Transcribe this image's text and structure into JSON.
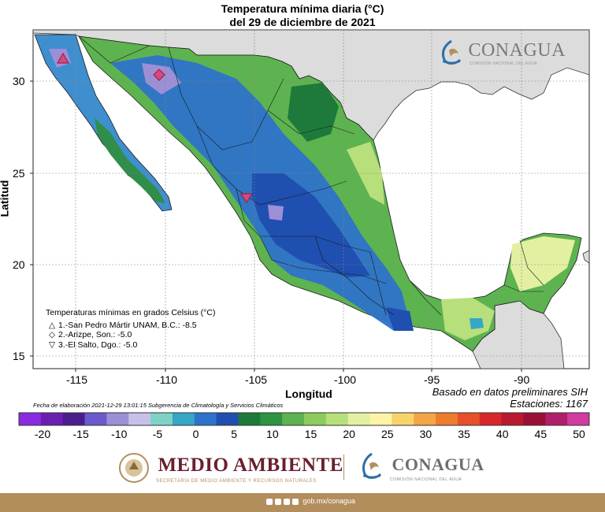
{
  "header": {
    "title_line1": "Temperatura mínima diaria (°C)",
    "title_line2": "del 29 de diciembre de 2021"
  },
  "map": {
    "xaxis_title": "Longitud",
    "yaxis_title": "Latitud",
    "x_ticks": [
      "-115",
      "-110",
      "-105",
      "-100",
      "-95",
      "-90"
    ],
    "y_ticks": [
      "30",
      "25",
      "20",
      "15"
    ],
    "grid": true,
    "colors": {
      "sea": "#ffffff",
      "land_outside": "#dcdcdc",
      "border": "#1a1a1a"
    }
  },
  "legend": {
    "heading": "Temperaturas mínimas en grados Celsius (°C)",
    "stations": [
      {
        "symbol": "△",
        "text": "1.-San Pedro Mártir UNAM, B.C.: -8.5"
      },
      {
        "symbol": "◇",
        "text": "2.-Arizpe, Son.: -5.0"
      },
      {
        "symbol": "▽",
        "text": "3.-El Salto, Dgo.: -5.0"
      }
    ]
  },
  "notes": {
    "basado": "Basado en datos preliminares SIH",
    "estaciones": "Estaciones:  1167",
    "fecha": "Fecha de elaboración 2021-12-29 13:01:15 Subgerencia de Climatología y Servicios Climáticos"
  },
  "colorbar": {
    "labels": [
      "-20",
      "-15",
      "-10",
      "-5",
      "0",
      "5",
      "10",
      "15",
      "20",
      "25",
      "30",
      "35",
      "40",
      "45",
      "50"
    ],
    "colors": [
      "#8a2be2",
      "#6a1fb0",
      "#4b1c8c",
      "#6a5acd",
      "#9d8fd6",
      "#c9c0ea",
      "#7fd3c6",
      "#35a7c7",
      "#2d73c9",
      "#1f4fb0",
      "#1d7a3a",
      "#2e9444",
      "#5db34f",
      "#8ccc5f",
      "#b7df7b",
      "#e3f0a2",
      "#fff3a8",
      "#f7d36b",
      "#f3a646",
      "#ef7b2f",
      "#e8502a",
      "#d9262a",
      "#b81a2f",
      "#9a0f35",
      "#b0206a",
      "#d33aa0"
    ]
  },
  "logos": {
    "conagua_top": "CONAGUA",
    "conagua_top_sub": "COMISIÓN NACIONAL DEL AGUA",
    "medio_ambiente": "MEDIO AMBIENTE",
    "medio_ambiente_sub": "SECRETARÍA DE MEDIO AMBIENTE Y RECURSOS NATURALES",
    "conagua_bottom": "CONAGUA",
    "conagua_bottom_sub": "COMISIÓN NACIONAL DEL AGUA"
  },
  "footer": {
    "url": "gob.mx/conagua"
  }
}
